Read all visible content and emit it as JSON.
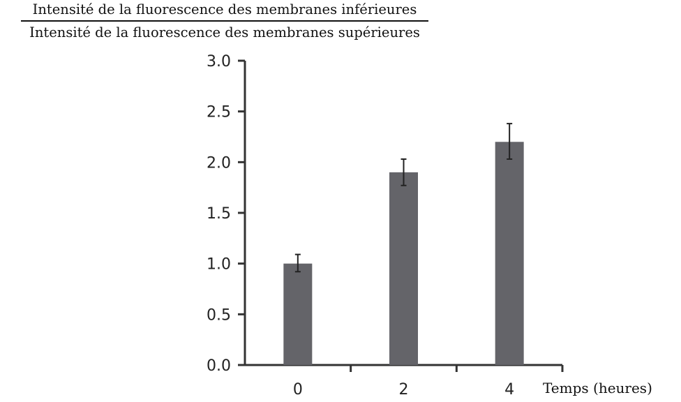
{
  "chart_data": {
    "type": "bar",
    "ylabel_numerator": "Intensité de la fluorescence des membranes inférieures",
    "ylabel_denominator": "Intensité de la fluorescence des membranes supérieures",
    "xlabel": "Temps (heures)",
    "categories": [
      "0",
      "2",
      "4"
    ],
    "values": [
      1.0,
      1.9,
      2.2
    ],
    "error_low": [
      0.92,
      1.77,
      2.03
    ],
    "error_high": [
      1.09,
      2.03,
      2.38
    ],
    "ylim": [
      0,
      3.0
    ],
    "yticks": [
      "0.0",
      "0.5",
      "1.0",
      "1.5",
      "2.0",
      "2.5",
      "3.0"
    ],
    "ytick_values": [
      0,
      0.5,
      1.0,
      1.5,
      2.0,
      2.5,
      3.0
    ],
    "bar_color": "#646469",
    "grid": false
  }
}
